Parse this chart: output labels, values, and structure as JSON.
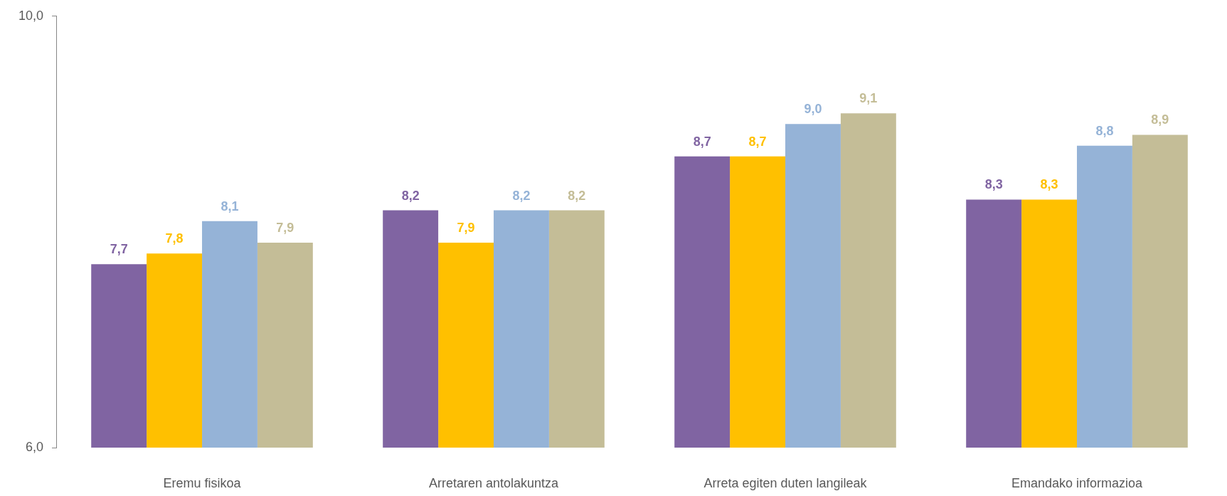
{
  "chart_data": {
    "type": "bar",
    "categories": [
      "Eremu fisikoa",
      "Arretaren antolakuntza",
      "Arreta egiten duten langileak",
      "Emandako informazioa"
    ],
    "series": [
      {
        "color": "#8064a2",
        "values": [
          7.7,
          8.2,
          8.7,
          8.3
        ],
        "value_labels": [
          "7,7",
          "8,2",
          "8,7",
          "8,3"
        ]
      },
      {
        "color": "#ffc000",
        "values": [
          7.8,
          7.9,
          8.7,
          8.3
        ],
        "value_labels": [
          "7,8",
          "7,9",
          "8,7",
          "8,3"
        ]
      },
      {
        "color": "#95b3d7",
        "values": [
          8.1,
          8.2,
          9.0,
          8.8
        ],
        "value_labels": [
          "8,1",
          "8,2",
          "9,0",
          "8,8"
        ]
      },
      {
        "color": "#c4bd97",
        "values": [
          7.9,
          8.2,
          9.1,
          8.9
        ],
        "value_labels": [
          "7,9",
          "8,2",
          "9,1",
          "8,9"
        ]
      }
    ],
    "ylim": [
      6,
      10
    ],
    "yticks": [
      {
        "value": 6,
        "label": "6,0"
      },
      {
        "value": 10,
        "label": "10,0"
      }
    ]
  }
}
